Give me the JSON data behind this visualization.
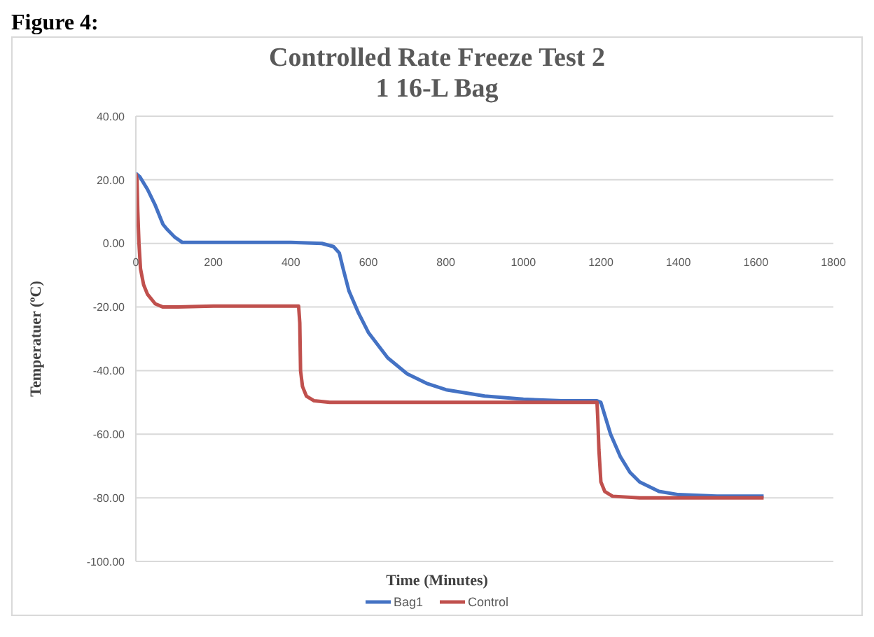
{
  "chart_data": {
    "type": "line",
    "title": "Controlled Rate Freeze Test 2",
    "subtitle": "1 16-L Bag",
    "xlabel": "Time (Minutes)",
    "ylabel": "Temperatuer (ºC)",
    "annotations": [
      "Figure 4:"
    ],
    "xlim": [
      0,
      1800
    ],
    "xticks": [
      0,
      200,
      400,
      600,
      800,
      1000,
      1200,
      1400,
      1600,
      1800
    ],
    "ylim": [
      -100,
      40
    ],
    "yticks": [
      {
        "value": -100,
        "label": "-100.00"
      },
      {
        "value": -80,
        "label": "-80.00"
      },
      {
        "value": -60,
        "label": "-60.00"
      },
      {
        "value": -40,
        "label": "-40.00"
      },
      {
        "value": -20,
        "label": "-20.00"
      },
      {
        "value": 0,
        "label": "0.00"
      },
      {
        "value": 20,
        "label": "20.00"
      },
      {
        "value": 40,
        "label": "40.00"
      }
    ],
    "grid": "y",
    "legend": "bottom",
    "marker": "none",
    "line_style": "solid",
    "series": [
      {
        "name": "Bag1",
        "color": "#4472c4",
        "x": [
          0,
          10,
          30,
          50,
          70,
          80,
          100,
          120,
          200,
          400,
          480,
          510,
          525,
          535,
          550,
          575,
          600,
          650,
          700,
          750,
          800,
          900,
          1000,
          1100,
          1190,
          1200,
          1210,
          1225,
          1250,
          1275,
          1300,
          1350,
          1400,
          1500,
          1620
        ],
        "values": [
          22,
          21,
          17,
          12,
          6,
          4.5,
          2,
          0.3,
          0.3,
          0.3,
          0,
          -1,
          -3,
          -8,
          -15,
          -22,
          -28,
          -36,
          -41,
          -44,
          -46,
          -48,
          -49,
          -49.5,
          -49.5,
          -50,
          -54,
          -60,
          -67,
          -72,
          -75,
          -78,
          -79,
          -79.5,
          -79.5
        ]
      },
      {
        "name": "Control",
        "color": "#c0504d",
        "x": [
          0,
          3,
          5,
          8,
          12,
          20,
          30,
          50,
          70,
          100,
          200,
          420,
          423,
          425,
          430,
          440,
          460,
          500,
          800,
          1190,
          1192,
          1195,
          1200,
          1210,
          1230,
          1300,
          1620
        ],
        "values": [
          22,
          20,
          10,
          0,
          -8,
          -13,
          -16,
          -19,
          -20,
          -20,
          -19.7,
          -19.7,
          -25,
          -40,
          -45,
          -48,
          -49.5,
          -50,
          -50,
          -50,
          -55,
          -65,
          -75,
          -78,
          -79.5,
          -80,
          -80
        ]
      }
    ]
  }
}
